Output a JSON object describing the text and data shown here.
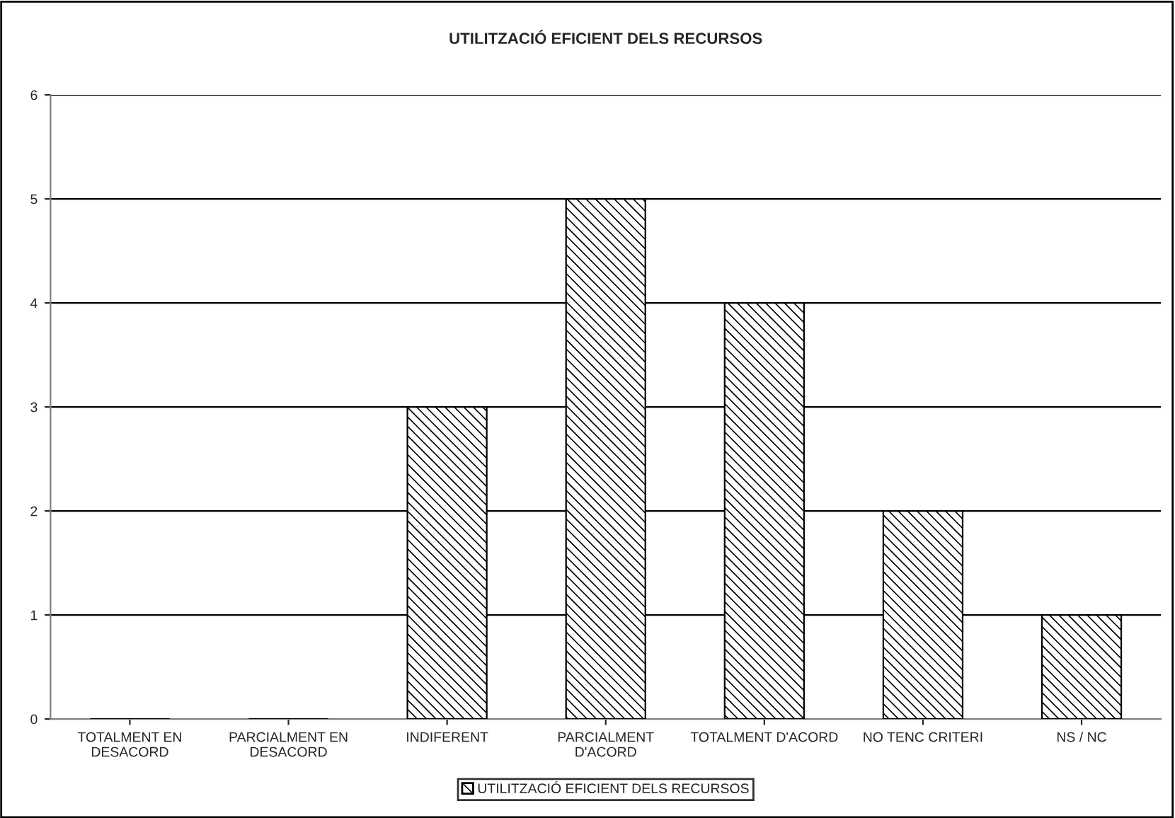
{
  "chart_data": {
    "type": "bar",
    "title": "UTILITZACIÓ EFICIENT DELS RECURSOS",
    "categories": [
      "TOTALMENT EN\nDESACORD",
      "PARCIALMENT EN\nDESACORD",
      "INDIFERENT",
      "PARCIALMENT\nD'ACORD",
      "TOTALMENT D'ACORD",
      "NO TENC CRITERI",
      "NS / NC"
    ],
    "series": [
      {
        "name": "UTILITZACIÓ EFICIENT DELS RECURSOS",
        "color": "#000000",
        "values": [
          0,
          0,
          3,
          5,
          4,
          2,
          1
        ]
      }
    ],
    "ylim": [
      0,
      6
    ],
    "yticks": [
      0,
      1,
      2,
      3,
      4,
      5,
      6
    ],
    "grid": "y",
    "legend": "bottom"
  }
}
